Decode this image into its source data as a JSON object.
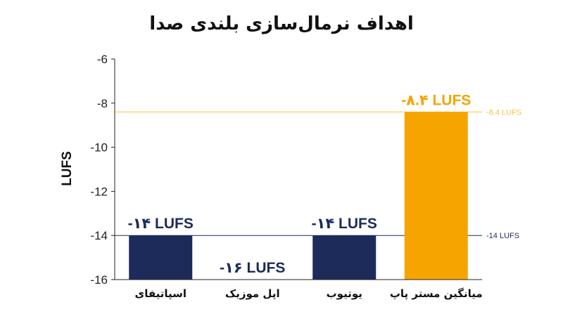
{
  "chart_data": {
    "type": "bar",
    "title": "اهداف نرمال‌سازی بلندی صدا",
    "ylabel": "LUFS",
    "xlabel": "",
    "ylim": [
      -16,
      -6
    ],
    "yticks": [
      -6,
      -8,
      -10,
      -12,
      -14,
      -16
    ],
    "grid": false,
    "categories": [
      "اسپاتیفای",
      "اپل موزیک",
      "یوتیوب",
      "میانگین مستر پاپ"
    ],
    "values": [
      -14,
      -16,
      -14,
      -8.4
    ],
    "data_labels": [
      "-۱۴ LUFS",
      "-۱۶ LUFS",
      "-۱۴ LUFS",
      "-۸.۴ LUFS"
    ],
    "bar_colors": [
      "#1c2b5a",
      "#1c2b5a",
      "#1c2b5a",
      "#f5a400"
    ],
    "reference_lines": [
      {
        "value": -8.4,
        "label": "-8.4 LUFS",
        "color": "#f5c542"
      },
      {
        "value": -14,
        "label": "-14 LUFS",
        "color": "#1c2b5a"
      }
    ]
  }
}
